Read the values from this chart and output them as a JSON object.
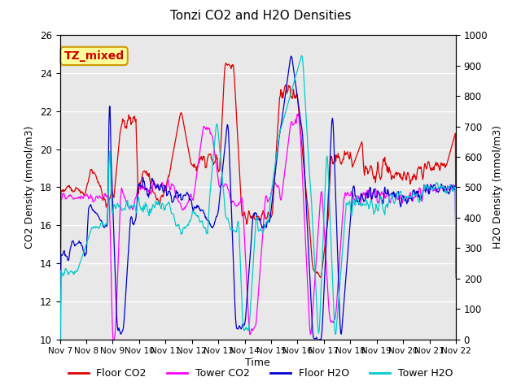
{
  "title": "Tonzi CO2 and H2O Densities",
  "xlabel": "Time",
  "ylabel_left": "CO2 Density (mmol/m3)",
  "ylabel_right": "H2O Density (mmol/m3)",
  "ylim_left": [
    10,
    26
  ],
  "ylim_right": [
    0,
    1000
  ],
  "annotation_text": "TZ_mixed",
  "annotation_color": "#cc0000",
  "annotation_bg": "#ffff99",
  "annotation_border": "#cc9900",
  "x_tick_labels": [
    "Nov 7",
    "Nov 8",
    "Nov 9",
    "Nov 10",
    "Nov 11",
    "Nov 12",
    "Nov 13",
    "Nov 14",
    "Nov 15",
    "Nov 16",
    "Nov 17",
    "Nov 18",
    "Nov 19",
    "Nov 20",
    "Nov 21",
    "Nov 22"
  ],
  "colors": {
    "floor_co2": "#dd0000",
    "tower_co2": "#ff00ff",
    "floor_h2o": "#0000cc",
    "tower_h2o": "#00cccc"
  },
  "legend_labels": [
    "Floor CO2",
    "Tower CO2",
    "Floor H2O",
    "Tower H2O"
  ],
  "bg_color": "#e8e8e8",
  "grid_color": "white",
  "yticks_left": [
    10,
    12,
    14,
    16,
    18,
    20,
    22,
    24,
    26
  ],
  "yticks_right": [
    0,
    100,
    200,
    300,
    400,
    500,
    600,
    700,
    800,
    900,
    1000
  ],
  "figsize": [
    6.4,
    4.8
  ],
  "dpi": 100
}
